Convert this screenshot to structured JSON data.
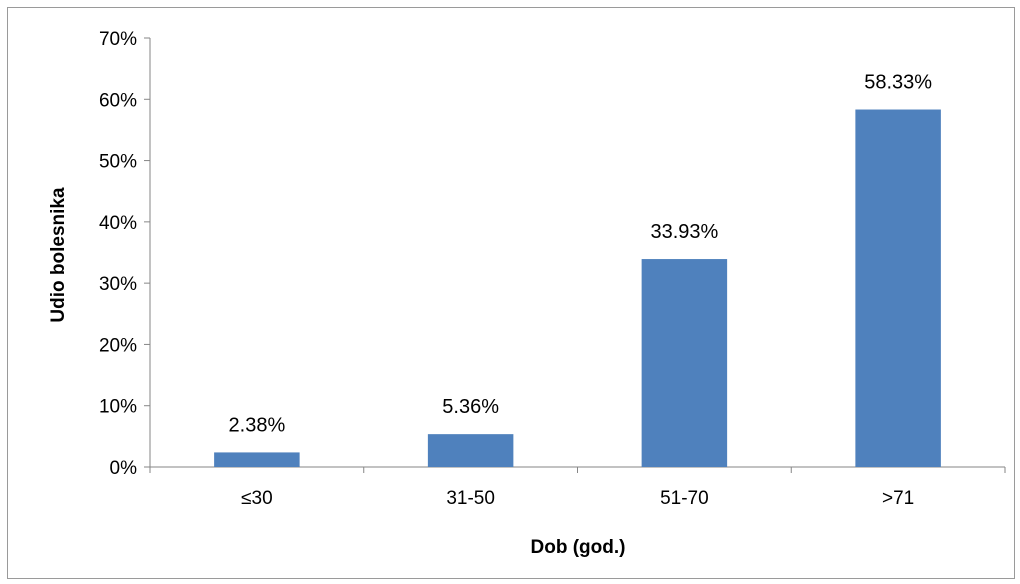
{
  "chart_data": {
    "type": "bar",
    "categories": [
      "≤30",
      "31-50",
      "51-70",
      ">71"
    ],
    "values": [
      2.38,
      5.36,
      33.93,
      58.33
    ],
    "data_labels": [
      "2.38%",
      "5.36%",
      "33.93%",
      "58.33%"
    ],
    "title": "",
    "xlabel": "Dob (god.)",
    "ylabel": "Udio  bolesnika",
    "ylim": [
      0,
      70
    ],
    "yticks": [
      0,
      10,
      20,
      30,
      40,
      50,
      60,
      70
    ],
    "ytick_labels": [
      "0%",
      "10%",
      "20%",
      "30%",
      "40%",
      "50%",
      "60%",
      "70%"
    ],
    "grid": false,
    "legend": "none",
    "bar_color": "#4F81BD"
  }
}
